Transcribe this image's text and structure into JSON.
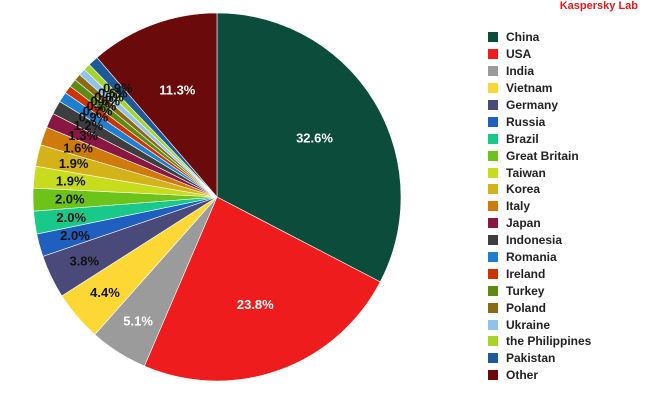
{
  "brand": "Kaspersky Lab",
  "chart_data": {
    "type": "pie",
    "title": "",
    "legend_position": "right",
    "categories": [
      "China",
      "USA",
      "India",
      "Vietnam",
      "Germany",
      "Russia",
      "Brazil",
      "Great Britain",
      "Taiwan",
      "Korea",
      "Italy",
      "Japan",
      "Indonesia",
      "Romania",
      "Ireland",
      "Turkey",
      "Poland",
      "Ukraine",
      "the Philippines",
      "Pakistan",
      "Other"
    ],
    "values": [
      32.6,
      23.8,
      5.1,
      4.4,
      3.8,
      2.0,
      2.0,
      2.0,
      1.9,
      1.9,
      1.6,
      1.3,
      1.2,
      0.9,
      0.7,
      0.7,
      0.6,
      0.6,
      0.6,
      0.9,
      11.3
    ],
    "labels": [
      "32.6%",
      "23.8%",
      "5.1%",
      "4.4%",
      "3.8%",
      "2.0%",
      "2.0%",
      "2.0%",
      "1.9%",
      "1.9%",
      "1.6%",
      "1.3%",
      "1.2%",
      "0.9%",
      "0.7%",
      "0.7%",
      "0.6%",
      "0.6%",
      "0.6%",
      "0.9%",
      "11.3%"
    ],
    "colors": [
      "#0b4d3a",
      "#ee1c1c",
      "#9b9b9b",
      "#fdd835",
      "#4a4a7a",
      "#1f5fbf",
      "#19c98a",
      "#6cc41a",
      "#c8dc1e",
      "#d4b21a",
      "#d07a0c",
      "#8a1742",
      "#3e3e3e",
      "#1e7fd0",
      "#cc3300",
      "#5c8a12",
      "#8c6a14",
      "#8fc3ec",
      "#a7d42a",
      "#1d5a9a",
      "#6b0a0a"
    ]
  }
}
